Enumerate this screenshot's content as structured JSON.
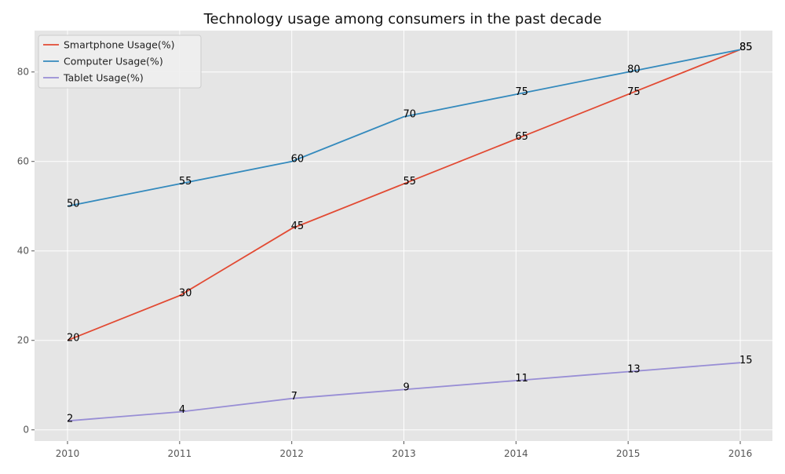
{
  "chart_data": {
    "type": "line",
    "title": "Technology usage among consumers in the past decade",
    "xlabel": "",
    "ylabel": "",
    "x": [
      "2010",
      "2011",
      "2012",
      "2013",
      "2014",
      "2015",
      "2016"
    ],
    "ylim": [
      -2.5,
      89.25
    ],
    "yticks": [
      0,
      20,
      40,
      60,
      80
    ],
    "grid": true,
    "legend_position": "upper-left",
    "series": [
      {
        "name": "Smartphone Usage(%)",
        "color": "#E24A33",
        "values": [
          20,
          30,
          45,
          55,
          65,
          75,
          85
        ]
      },
      {
        "name": "Computer Usage(%)",
        "color": "#348ABD",
        "values": [
          50,
          55,
          60,
          70,
          75,
          80,
          85
        ]
      },
      {
        "name": "Tablet Usage(%)",
        "color": "#988ED5",
        "values": [
          2,
          4,
          7,
          9,
          11,
          13,
          15
        ]
      }
    ]
  }
}
